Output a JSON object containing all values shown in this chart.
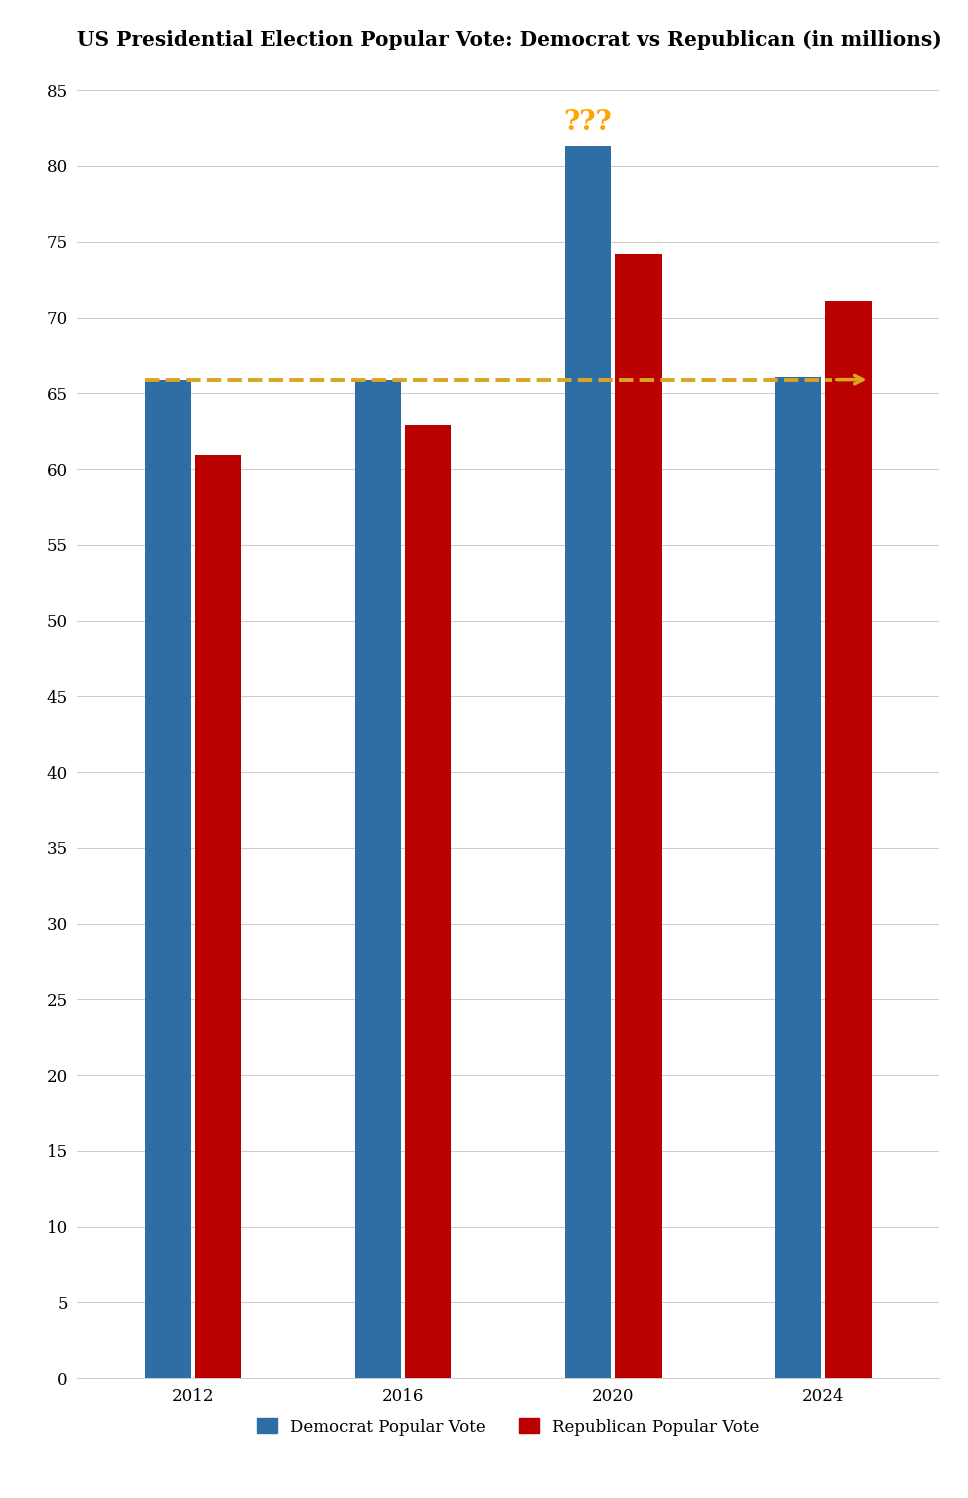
{
  "title": "US Presidential Election Popular Vote: Democrat vs Republican (in millions)",
  "years": [
    2012,
    2016,
    2020,
    2024
  ],
  "democrat_votes": [
    65.9,
    65.9,
    81.3,
    66.1
  ],
  "republican_votes": [
    60.9,
    62.9,
    74.2,
    71.1
  ],
  "dem_color": "#2E6EA6",
  "rep_color": "#BB0000",
  "bar_width": 0.22,
  "ylim": [
    0,
    87
  ],
  "yticks": [
    0,
    5,
    10,
    15,
    20,
    25,
    30,
    35,
    40,
    45,
    50,
    55,
    60,
    65,
    70,
    75,
    80,
    85
  ],
  "dashed_line_y": 65.9,
  "annotation_text": "???",
  "annotation_color": "#FFA500",
  "arrow_color": "#DAA520",
  "background_color": "#FFFFFF",
  "legend_labels": [
    "Democrat Popular Vote",
    "Republican Popular Vote"
  ],
  "title_fontsize": 14.5,
  "tick_fontsize": 12,
  "legend_fontsize": 12
}
